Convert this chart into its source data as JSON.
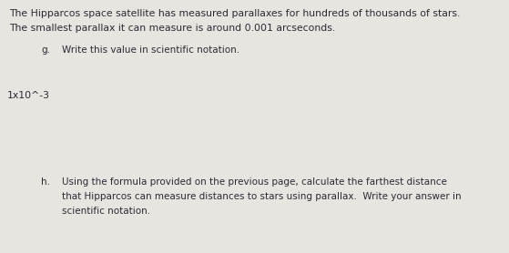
{
  "background_color": "#e8e4e0",
  "text_color": "#2a2a35",
  "intro_line1": "The Hipparcos space satellite has measured parallaxes for hundreds of thousands of stars.",
  "intro_line2": "The smallest parallax it can measure is around 0.001 arcseconds.",
  "question_g_label": "g.",
  "question_g_text": "Write this value in scientific notation.",
  "answer_g": "1x10^-3",
  "question_h_label": "h.",
  "question_h_line1": "Using the formula provided on the previous page, calculate the farthest distance",
  "question_h_line2": "that Hipparcos can measure distances to stars using parallax.  Write your answer in",
  "question_h_line3": "scientific notation.",
  "font_size_intro": 7.8,
  "font_size_question": 7.5,
  "font_size_answer": 7.8,
  "fig_width": 5.59,
  "fig_height": 2.78,
  "dpi": 100
}
